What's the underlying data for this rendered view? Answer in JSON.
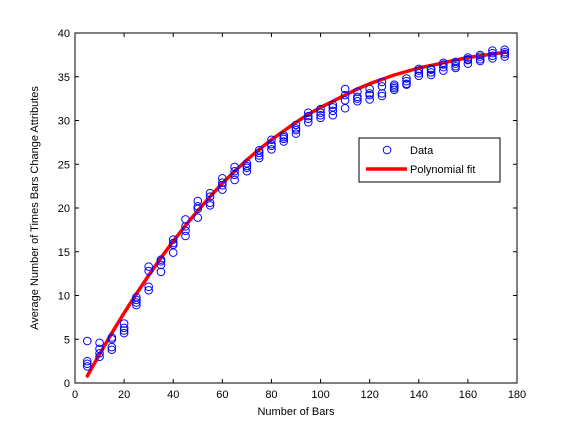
{
  "chart_data": {
    "type": "scatter",
    "title": "",
    "xlabel": "Number of Bars",
    "ylabel": "Average Number of Times Bars Change Attributes",
    "xlim": [
      0,
      180
    ],
    "ylim": [
      0,
      40
    ],
    "xticks": [
      0,
      20,
      40,
      60,
      80,
      100,
      120,
      140,
      160,
      180
    ],
    "yticks": [
      0,
      5,
      10,
      15,
      20,
      25,
      30,
      35,
      40
    ],
    "grid": false,
    "legend": {
      "position": "right",
      "entries": [
        "Data",
        "Polynomial fit"
      ]
    },
    "colors": {
      "data": "#0000ff",
      "fit": "#ff0000",
      "axes": "#000000"
    },
    "series": [
      {
        "name": "Data",
        "kind": "scatter",
        "x": [
          5,
          5,
          5,
          5,
          10,
          10,
          10,
          10,
          15,
          15,
          15,
          15,
          20,
          20,
          20,
          20,
          25,
          25,
          25,
          25,
          30,
          30,
          30,
          30,
          35,
          35,
          35,
          35,
          40,
          40,
          40,
          40,
          45,
          45,
          45,
          45,
          50,
          50,
          50,
          50,
          55,
          55,
          55,
          55,
          60,
          60,
          60,
          60,
          65,
          65,
          65,
          65,
          70,
          70,
          70,
          70,
          75,
          75,
          75,
          75,
          80,
          80,
          80,
          80,
          85,
          85,
          85,
          85,
          90,
          90,
          90,
          90,
          95,
          95,
          95,
          95,
          100,
          100,
          100,
          100,
          105,
          105,
          105,
          105,
          110,
          110,
          110,
          110,
          115,
          115,
          115,
          115,
          120,
          120,
          120,
          120,
          125,
          125,
          125,
          125,
          130,
          130,
          130,
          130,
          135,
          135,
          135,
          135,
          140,
          140,
          140,
          140,
          145,
          145,
          145,
          145,
          150,
          150,
          150,
          150,
          155,
          155,
          155,
          155,
          160,
          160,
          160,
          160,
          165,
          165,
          165,
          165,
          170,
          170,
          170,
          170,
          175,
          175,
          175,
          175
        ],
        "y": [
          4.8,
          2.5,
          1.9,
          2.2,
          4.6,
          3.9,
          3.0,
          3.4,
          5.2,
          4.1,
          3.8,
          5.0,
          6.8,
          6.0,
          5.7,
          6.3,
          9.5,
          8.9,
          9.2,
          9.8,
          13.3,
          12.8,
          10.6,
          11.0,
          14.1,
          12.7,
          13.5,
          13.9,
          16.4,
          14.9,
          15.8,
          16.0,
          18.7,
          17.9,
          16.8,
          17.4,
          20.8,
          19.9,
          18.9,
          20.2,
          21.7,
          20.6,
          20.3,
          21.3,
          23.4,
          22.6,
          22.1,
          22.9,
          24.7,
          23.8,
          23.2,
          24.2,
          25.1,
          24.6,
          24.2,
          24.8,
          26.6,
          26.0,
          25.7,
          26.3,
          27.8,
          27.1,
          26.7,
          27.3,
          28.3,
          27.6,
          27.9,
          28.1,
          29.5,
          28.9,
          28.5,
          29.1,
          30.9,
          30.2,
          29.8,
          30.5,
          31.3,
          30.6,
          30.3,
          30.9,
          31.5,
          31.1,
          30.6,
          31.8,
          33.6,
          32.3,
          31.4,
          32.9,
          33.3,
          32.7,
          32.2,
          32.5,
          33.6,
          32.9,
          32.4,
          33.1,
          34.4,
          33.9,
          33.1,
          32.8,
          34.1,
          33.5,
          33.9,
          33.7,
          34.5,
          34.1,
          34.2,
          34.8,
          35.9,
          35.4,
          35.1,
          35.7,
          35.8,
          35.2,
          35.5,
          35.9,
          36.6,
          36.1,
          35.7,
          36.4,
          36.5,
          36.0,
          36.2,
          36.7,
          37.2,
          36.9,
          36.5,
          37.0,
          37.5,
          37.0,
          36.8,
          37.3,
          38.0,
          37.4,
          37.1,
          37.7,
          38.1,
          37.6,
          37.3,
          37.8
        ]
      },
      {
        "name": "Polynomial fit",
        "kind": "line",
        "x": [
          5,
          10,
          15,
          20,
          25,
          30,
          35,
          40,
          45,
          50,
          55,
          60,
          65,
          70,
          75,
          80,
          85,
          90,
          95,
          100,
          105,
          110,
          115,
          120,
          125,
          130,
          135,
          140,
          145,
          150,
          155,
          160,
          165,
          170,
          175
        ],
        "y": [
          0.8,
          3.3,
          5.7,
          8.0,
          10.2,
          12.3,
          14.3,
          16.2,
          18.0,
          19.7,
          21.3,
          22.8,
          24.2,
          25.5,
          26.7,
          27.8,
          28.8,
          29.8,
          30.7,
          31.5,
          32.2,
          32.9,
          33.6,
          34.2,
          34.7,
          35.2,
          35.6,
          36.0,
          36.3,
          36.6,
          36.9,
          37.2,
          37.4,
          37.6,
          37.8
        ]
      }
    ]
  }
}
